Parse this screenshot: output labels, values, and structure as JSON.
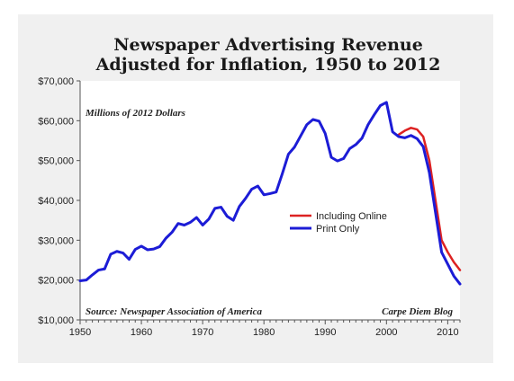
{
  "chart_data": {
    "type": "line",
    "title": "Newspaper Advertising Revenue",
    "subtitle": "Adjusted for Inflation, 1950 to 2012",
    "xlim": [
      1950,
      2012
    ],
    "ylim": [
      10000,
      70000
    ],
    "x_ticks": [
      1950,
      1960,
      1970,
      1980,
      1990,
      2000,
      2010
    ],
    "y_ticks": [
      10000,
      20000,
      30000,
      40000,
      50000,
      60000,
      70000
    ],
    "x_tick_labels": [
      "1950",
      "1960",
      "1970",
      "1980",
      "1990",
      "2000",
      "2010"
    ],
    "y_tick_labels": [
      "$10,000",
      "$20,000",
      "$30,000",
      "$40,000",
      "$50,000",
      "$60,000",
      "$70,000"
    ],
    "grid": false,
    "legend_position": "center-right",
    "annotations": {
      "units": "Millions of 2012 Dollars",
      "source": "Source: Newspaper Association of America",
      "credit": "Carpe Diem Blog"
    },
    "series": [
      {
        "name": "Including Online",
        "color": "#dd2222",
        "x": [
          2002,
          2003,
          2004,
          2005,
          2006,
          2007,
          2008,
          2009,
          2010,
          2011,
          2012
        ],
        "y": [
          56500,
          57500,
          58200,
          57800,
          56000,
          50000,
          40000,
          30000,
          27000,
          24500,
          22500
        ]
      },
      {
        "name": "Print Only",
        "color": "#1c1cd6",
        "x": [
          1950,
          1951,
          1952,
          1953,
          1954,
          1955,
          1956,
          1957,
          1958,
          1959,
          1960,
          1961,
          1962,
          1963,
          1964,
          1965,
          1966,
          1967,
          1968,
          1969,
          1970,
          1971,
          1972,
          1973,
          1974,
          1975,
          1976,
          1977,
          1978,
          1979,
          1980,
          1981,
          1982,
          1983,
          1984,
          1985,
          1986,
          1987,
          1988,
          1989,
          1990,
          1991,
          1992,
          1993,
          1994,
          1995,
          1996,
          1997,
          1998,
          1999,
          2000,
          2001,
          2002,
          2003,
          2004,
          2005,
          2006,
          2007,
          2008,
          2009,
          2010,
          2011,
          2012
        ],
        "y": [
          19800,
          20000,
          21300,
          22500,
          22800,
          26500,
          27200,
          26800,
          25200,
          27700,
          28500,
          27600,
          27800,
          28400,
          30500,
          32000,
          34200,
          33800,
          34500,
          35700,
          33800,
          35300,
          38000,
          38300,
          36000,
          35000,
          38500,
          40500,
          42800,
          43600,
          41400,
          41700,
          42100,
          46700,
          51600,
          53400,
          56200,
          59000,
          60300,
          59900,
          56800,
          50800,
          49900,
          50500,
          53000,
          54000,
          55600,
          59000,
          61500,
          63800,
          64600,
          57200,
          56000,
          55700,
          56300,
          55500,
          53500,
          47000,
          37000,
          27000,
          24000,
          21000,
          19000
        ]
      }
    ]
  }
}
